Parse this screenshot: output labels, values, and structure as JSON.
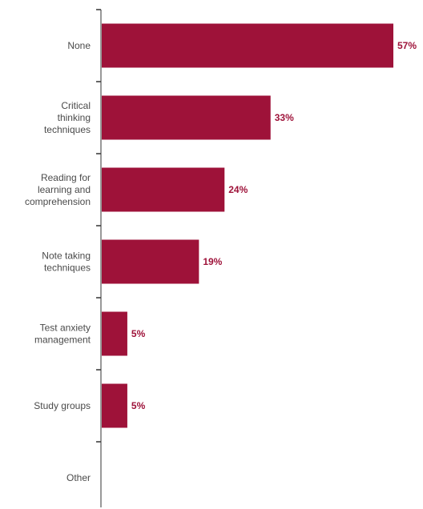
{
  "chart_data": {
    "type": "bar",
    "orientation": "horizontal",
    "categories": [
      "None",
      "Critical thinking techniques",
      "Reading for learning and comprehension",
      "Note taking techniques",
      "Test anxiety management",
      "Study groups",
      "Other"
    ],
    "category_lines": [
      [
        "None"
      ],
      [
        "Critical",
        "thinking",
        "techniques"
      ],
      [
        "Reading for",
        "learning and",
        "comprehension"
      ],
      [
        "Note taking",
        "techniques"
      ],
      [
        "Test anxiety",
        "management"
      ],
      [
        "Study groups"
      ],
      [
        "Other"
      ]
    ],
    "values": [
      57,
      33,
      24,
      19,
      5,
      5,
      null
    ],
    "value_labels": [
      "57%",
      "33%",
      "24%",
      "19%",
      "5%",
      "5%",
      ""
    ],
    "unit": "%",
    "xlim": [
      0,
      60
    ],
    "grid": false,
    "legend": "none",
    "colors": {
      "bar": "#9e1239",
      "value_text": "#9e1239",
      "axis": "#333333",
      "category_text": "#4a4a4a"
    }
  }
}
